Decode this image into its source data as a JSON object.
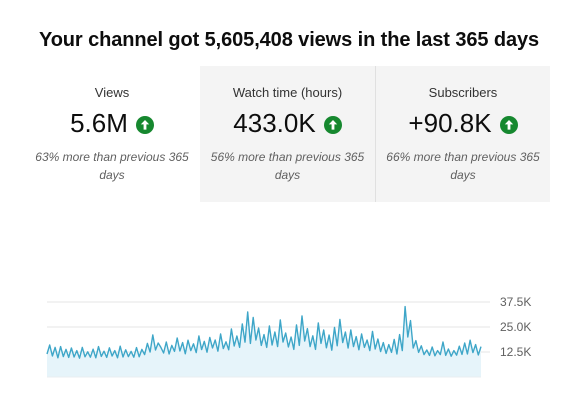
{
  "headline": "Your channel got 5,605,408 views in the last 365 days",
  "cards": [
    {
      "label": "Views",
      "value": "5.6M",
      "note": "63% more than previous 365 days",
      "trend_icon": "arrow-up-circle-icon"
    },
    {
      "label": "Watch time (hours)",
      "value": "433.0K",
      "note": "56% more than previous 365 days",
      "trend_icon": "arrow-up-circle-icon"
    },
    {
      "label": "Subscribers",
      "value": "+90.8K",
      "note": "66% more than previous 365 days",
      "trend_icon": "arrow-up-circle-icon"
    }
  ],
  "colors": {
    "accent_line": "#3ea6c8",
    "area_fill": "#e6f4fa",
    "trend_up": "#16882f"
  },
  "chart_data": {
    "type": "area",
    "y_ticks": [
      "37.5K",
      "25.0K",
      "12.5K"
    ],
    "y_tick_values": [
      37500,
      25000,
      12500
    ],
    "ylim": [
      0,
      45000
    ],
    "xlabel": "",
    "ylabel": "",
    "grid": true,
    "series": [
      {
        "values": [
          11500,
          16000,
          10500,
          14800,
          9600,
          15200,
          10200,
          13800,
          9800,
          14500,
          10000,
          13200,
          9400,
          14800,
          10100,
          12600,
          9900,
          13900,
          9600,
          15200,
          10300,
          12900,
          9800,
          14600,
          10500,
          13200,
          9600,
          15400,
          10000,
          13600,
          10200,
          12800,
          9900,
          14700,
          10100,
          13800,
          11200,
          16800,
          12500,
          21000,
          13500,
          17000,
          14800,
          12000,
          17500,
          11500,
          15800,
          12800,
          19500,
          13000,
          17200,
          11600,
          18400,
          13200,
          16600,
          12200,
          20500,
          13700,
          17800,
          12400,
          19800,
          14500,
          18500,
          12900,
          21500,
          14200,
          17600,
          13600,
          24000,
          15500,
          20500,
          14800,
          26500,
          17400,
          32500,
          16800,
          29800,
          18500,
          24500,
          15800,
          21200,
          14800,
          25500,
          16000,
          22500,
          15200,
          28500,
          17500,
          22000,
          15000,
          20000,
          13800,
          26000,
          15800,
          30500,
          18000,
          24200,
          15200,
          20600,
          13800,
          27000,
          16800,
          23500,
          14600,
          21000,
          13400,
          24800,
          15600,
          28800,
          17200,
          22500,
          14500,
          23500,
          15200,
          20200,
          13600,
          21500,
          14800,
          18500,
          13200,
          22800,
          14000,
          19000,
          12700,
          17200,
          11800,
          16200,
          12300,
          18800,
          11500,
          21200,
          13200,
          35200,
          20000,
          28200,
          14500,
          18200,
          12300,
          15600,
          11200,
          13500,
          10800,
          15000,
          10600,
          13200,
          11200,
          17500,
          10800,
          14000,
          10400,
          13200,
          10900,
          15400,
          11300,
          17000,
          11500,
          18400,
          12200,
          16200,
          11000,
          15200
        ]
      }
    ]
  }
}
